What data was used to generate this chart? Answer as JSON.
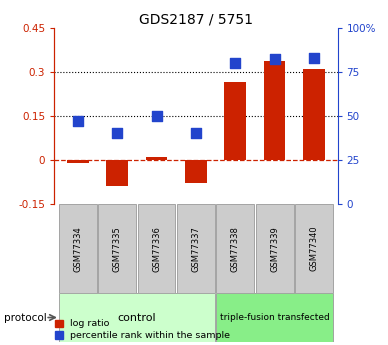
{
  "title": "GDS2187 / 5751",
  "samples": [
    "GSM77334",
    "GSM77335",
    "GSM77336",
    "GSM77337",
    "GSM77338",
    "GSM77339",
    "GSM77340"
  ],
  "log_ratio": [
    -0.01,
    -0.09,
    0.01,
    -0.08,
    0.265,
    0.335,
    0.31
  ],
  "percentile_rank": [
    47,
    40,
    50,
    40,
    80,
    82,
    83
  ],
  "ylim_left": [
    -0.15,
    0.45
  ],
  "ylim_right": [
    0,
    100
  ],
  "yticks_left": [
    -0.15,
    0.0,
    0.15,
    0.3,
    0.45
  ],
  "yticks_right": [
    0,
    25,
    50,
    75,
    100
  ],
  "ytick_labels_left": [
    "-0.15",
    "0",
    "0.15",
    "0.3",
    "0.45"
  ],
  "ytick_labels_right": [
    "0",
    "25",
    "50",
    "75",
    "100%"
  ],
  "hlines": [
    0.15,
    0.3
  ],
  "bar_color": "#cc2200",
  "dot_color": "#2244cc",
  "zero_line_color": "#cc2200",
  "hline_color": "#000000",
  "control_label": "control",
  "treated_label": "triple-fusion transfected",
  "control_color": "#ccffcc",
  "treated_color": "#88ee88",
  "protocol_label": "protocol",
  "legend_bar": "log ratio",
  "legend_dot": "percentile rank within the sample",
  "bar_width": 0.55,
  "dot_size": 55,
  "sample_bg": "#cccccc",
  "sample_edge": "#999999"
}
